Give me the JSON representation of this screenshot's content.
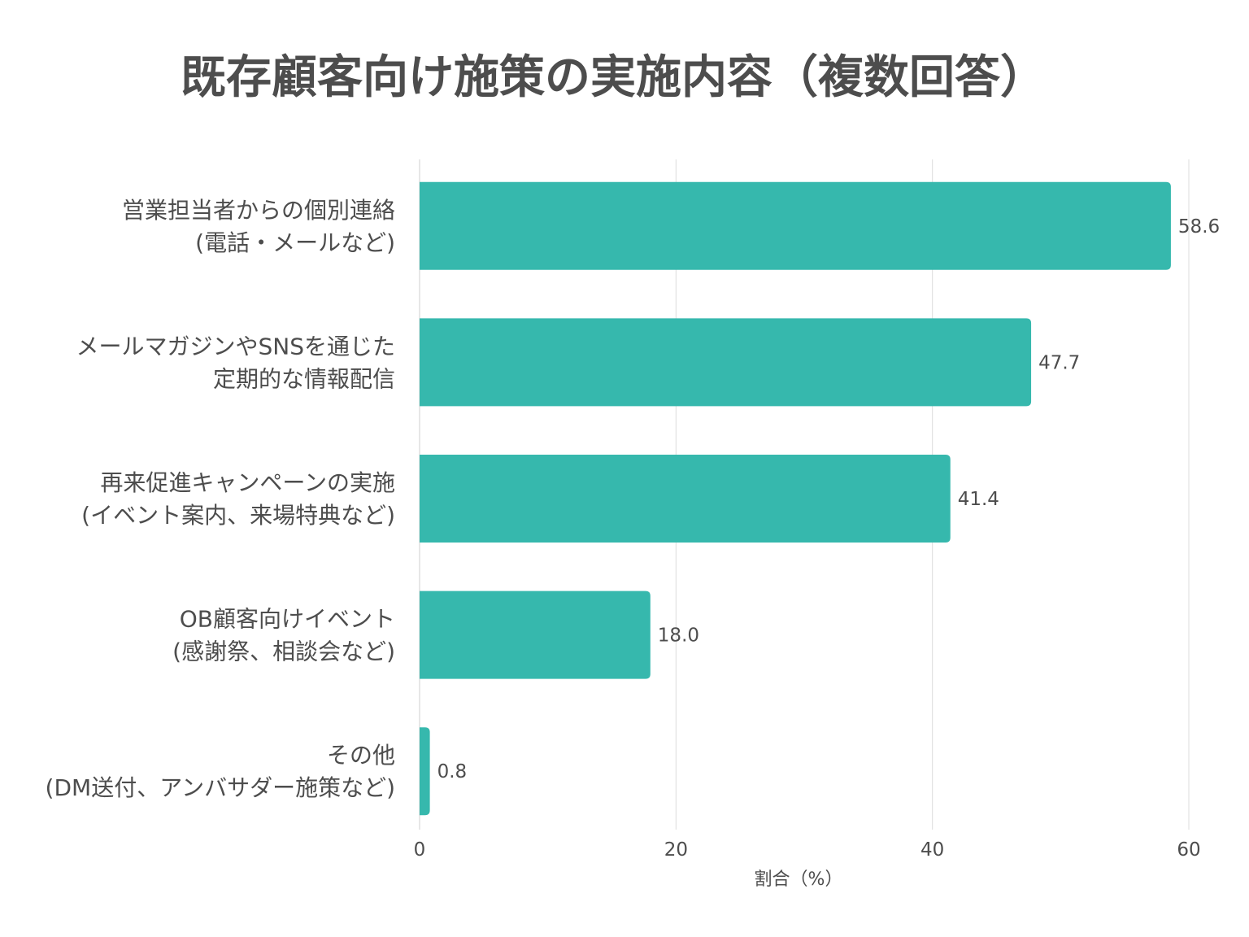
{
  "chart_data": {
    "type": "bar",
    "orientation": "horizontal",
    "title": "既存顧客向け施策の実施内容（複数回答）",
    "xlabel": "割合（%）",
    "ylabel": "",
    "categories": [
      [
        "営業担当者からの個別連絡",
        "(電話・メールなど)"
      ],
      [
        "メールマガジンやSNSを通じた",
        "定期的な情報配信"
      ],
      [
        "再来促進キャンペーンの実施",
        "(イベント案内、来場特典など)"
      ],
      [
        "OB顧客向けイベント",
        "(感謝祭、相談会など)"
      ],
      [
        "その他",
        "(DM送付、アンバサダー施策など)"
      ]
    ],
    "values": [
      58.6,
      47.7,
      41.4,
      18.0,
      0.8
    ],
    "value_labels": [
      "58.6",
      "47.7",
      "41.4",
      "18.0",
      "0.8"
    ],
    "xlim": [
      0,
      60
    ],
    "ticks": [
      0,
      20,
      40,
      60
    ],
    "tick_labels": [
      "0",
      "20",
      "40",
      "60"
    ],
    "grid": true,
    "legend": "none",
    "bar_color": "#36b8ad"
  }
}
